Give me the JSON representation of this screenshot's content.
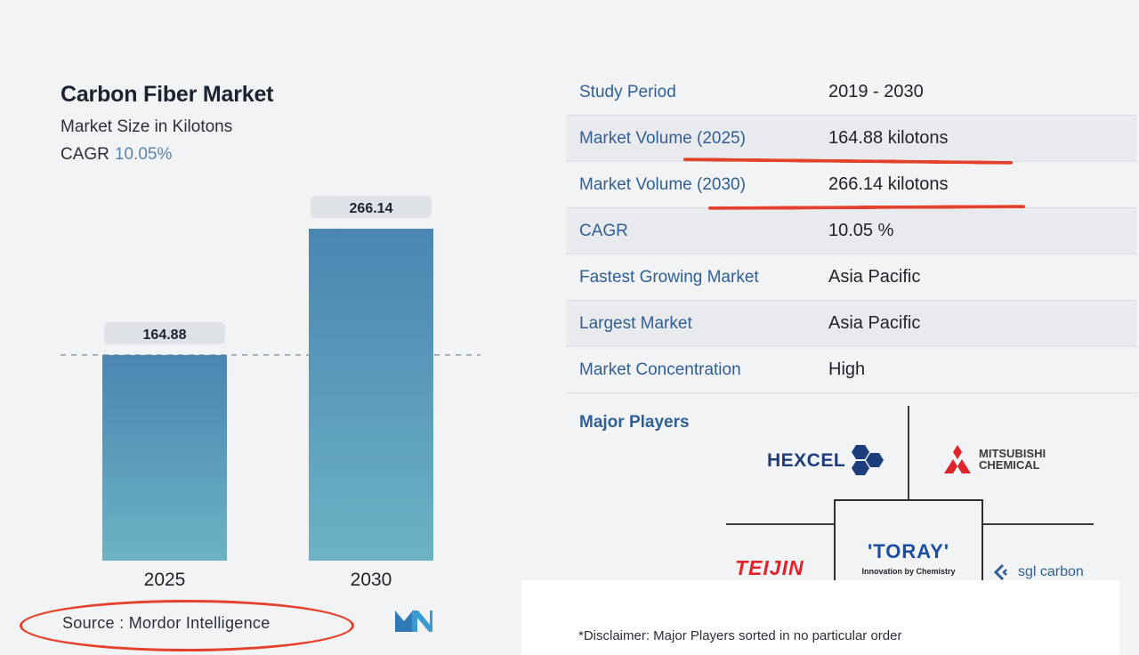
{
  "chart_data": {
    "type": "bar",
    "title": "Carbon Fiber Market",
    "subtitle": "Market Size in Kilotons",
    "cagr_label": "CAGR",
    "cagr_value": "10.05%",
    "categories": [
      "2025",
      "2030"
    ],
    "values": [
      164.88,
      266.14
    ],
    "value_labels": [
      "164.88",
      "266.14"
    ],
    "ylim": [
      0,
      266.14
    ],
    "xlabel": "",
    "ylabel": "",
    "bar_color_top": "#4a86b2",
    "bar_color_bottom": "#6cb3c2",
    "reference_line": "dashed"
  },
  "source": "Source :  Mordor Intelligence",
  "table": [
    {
      "key": "Study Period",
      "value": "2019 - 2030"
    },
    {
      "key": "Market Volume (2025)",
      "value": "164.88 kilotons"
    },
    {
      "key": "Market Volume (2030)",
      "value": "266.14 kilotons"
    },
    {
      "key": "CAGR",
      "value": "10.05 %"
    },
    {
      "key": "Fastest Growing Market",
      "value": "Asia Pacific"
    },
    {
      "key": "Largest Market",
      "value": "Asia Pacific"
    },
    {
      "key": "Market Concentration",
      "value": "High"
    }
  ],
  "players": {
    "label": "Major Players",
    "hexcel": "HEXCEL",
    "mitsubishi_line1": "MITSUBISHI",
    "mitsubishi_line2": "CHEMICAL",
    "toray": "'TORAY'",
    "toray_tagline": "Innovation by Chemistry",
    "teijin": "TEIJIN",
    "sgl": "sgl carbon"
  },
  "disclaimer": "*Disclaimer: Major Players sorted in no particular order",
  "colors": {
    "accent_red": "#e4402a",
    "key_blue": "#2f5f95",
    "hexcel_blue": "#1d3c7c",
    "toray_blue": "#1b4ea0",
    "teijin_red": "#e0242b"
  }
}
